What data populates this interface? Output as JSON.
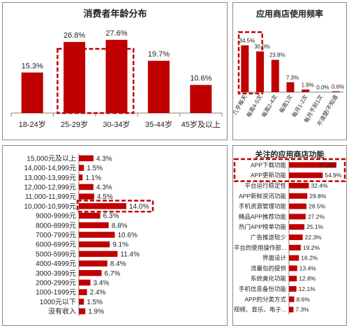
{
  "colors": {
    "bar": "#c00000",
    "axis": "#7f7f7f",
    "text": "#222222",
    "highlight": "#c00000"
  },
  "chart_data": [
    {
      "id": "age",
      "type": "bar",
      "title": "消费者年龄分布",
      "categories": [
        "18-24岁",
        "25-29岁",
        "30-34岁",
        "35-44岁",
        "45岁及以上"
      ],
      "values": [
        15.3,
        26.8,
        27.6,
        19.7,
        10.6
      ],
      "labels": [
        "15.3%",
        "26.8%",
        "27.6%",
        "19.7%",
        "10.6%"
      ],
      "highlight": [
        1,
        2
      ],
      "ylim": [
        0,
        30
      ]
    },
    {
      "id": "freq",
      "type": "bar",
      "title": "应用商店使用频率",
      "categories": [
        "几乎每天",
        "每周4-5次",
        "每周2-4次",
        "每周1次",
        "每月1-2次",
        "每月不到1次",
        "不清楚/不知道"
      ],
      "values": [
        34.5,
        30.0,
        23.8,
        7.3,
        1.9,
        0.0,
        0.6
      ],
      "labels": [
        "34.5%",
        "30.0%",
        "23.8%",
        "7.3%",
        "1.9%",
        "0.0%",
        "0.6%"
      ],
      "highlight": [
        0
      ],
      "ylim": [
        0,
        36
      ]
    },
    {
      "id": "income",
      "type": "bar",
      "orientation": "horizontal",
      "categories": [
        "15,000元及以上",
        "14,000-14,999元",
        "13,000-13,999元",
        "12,000-12,999元",
        "11,000-11,999元",
        "10,000-10,999元",
        "9000-9999元",
        "8000-8999元",
        "7000-7999元",
        "6000-6999元",
        "5000-5999元",
        "4000-4999元",
        "3000-3999元",
        "2000-2999元",
        "1000-1999元",
        "1000元以下",
        "没有收入"
      ],
      "values": [
        4.3,
        1.5,
        1.1,
        4.3,
        4.5,
        14.0,
        6.3,
        8.8,
        10.6,
        9.1,
        11.4,
        8.4,
        6.7,
        3.4,
        2.4,
        1.5,
        1.9
      ],
      "labels": [
        "4.3%",
        "1.5%",
        "1.1%",
        "4.3%",
        "4.5%",
        "14.0%",
        "6.3%",
        "8.8%",
        "10.6%",
        "9.1%",
        "11.4%",
        "8.4%",
        "6.7%",
        "3.4%",
        "2.4%",
        "1.5%",
        "1.9%"
      ],
      "highlight": [
        5
      ],
      "xlim": [
        0,
        15
      ]
    },
    {
      "id": "features",
      "type": "bar",
      "orientation": "horizontal",
      "title": "关注的应用商店功能",
      "categories": [
        "APP下载功能",
        "APP更新功能",
        "平台运行稳定性",
        "APP新鲜资讯功能",
        "手机资源管理功能",
        "精品APP推荐功能",
        "热门APP榜单功能",
        "广告推送较少",
        "平台的使用操作部...",
        "界面设计",
        "流量包的提供",
        "系统美化功能",
        "手机信息备份功能",
        "APP的分类方式",
        "视频、音乐、电子..."
      ],
      "values": [
        77.2,
        54.9,
        32.4,
        29.8,
        28.5,
        27.2,
        25.1,
        22.3,
        19.2,
        16.2,
        13.4,
        12.8,
        12.1,
        8.6,
        7.3
      ],
      "labels": [
        "77.2%",
        "54.9%",
        "32.4%",
        "29.8%",
        "28.5%",
        "27.2%",
        "25.1%",
        "22.3%",
        "19.2%",
        "16.2%",
        "13.4%",
        "12.8%",
        "12.1%",
        "8.6%",
        "7.3%"
      ],
      "highlight": [
        0,
        1
      ],
      "xlim": [
        0,
        80
      ]
    }
  ]
}
